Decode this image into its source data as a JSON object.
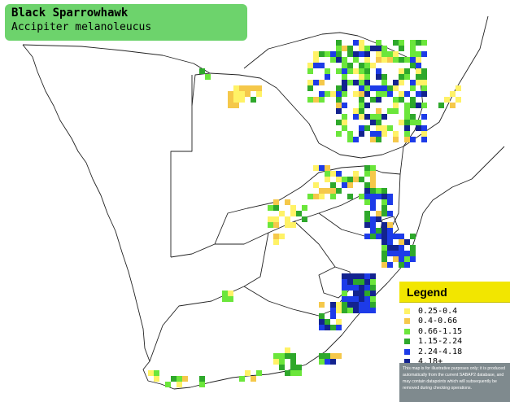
{
  "species": {
    "common_name": "Black Sparrowhawk",
    "scientific_name": "Accipiter melanoleucus"
  },
  "legend": {
    "title": "Legend",
    "items": [
      {
        "range": "0.25-0.4",
        "color": "#fff266"
      },
      {
        "range": "0.4-0.66",
        "color": "#f5c84a"
      },
      {
        "range": "0.66-1.15",
        "color": "#6be63b"
      },
      {
        "range": "1.15-2.24",
        "color": "#2ea82b"
      },
      {
        "range": "2.24-4.18",
        "color": "#1d3be8"
      },
      {
        "range": "4.18+",
        "color": "#13238f"
      }
    ],
    "disclaimer": "This map is for illustrative purposes only; it is produced automatically from the current SABAP2 database, and may contain datapoints which will subsequently be removed during checking operations."
  },
  "colors": {
    "title_box": "#6dd36c",
    "legend_header": "#f2e600",
    "disclaimer_bg": "#7f8a8e",
    "border_lines": "#222222"
  }
}
